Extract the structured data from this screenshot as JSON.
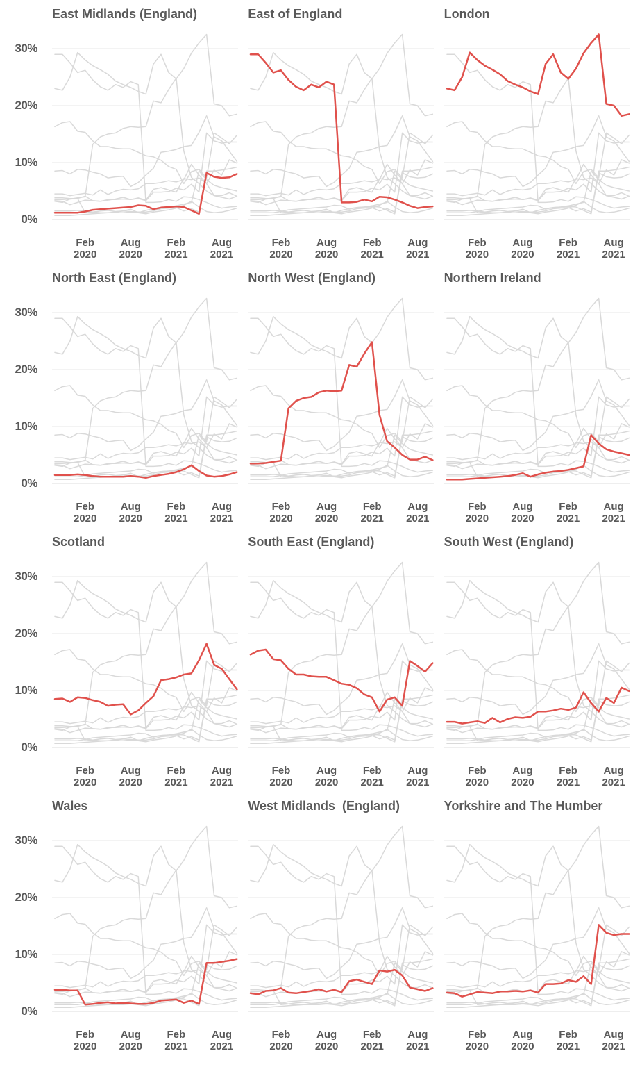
{
  "figure": {
    "background": "#ffffff",
    "text_color": "#595959",
    "gridline_color": "#ececec",
    "zeroline_color": "#e3e3e3",
    "highlight_color": "#e0514c",
    "other_series_color": "#d9d9d9"
  },
  "chart_data": {
    "type": "line",
    "layout": "small-multiples-grid-4x3",
    "values_unit": "%",
    "ylim": [
      0,
      33.2
    ],
    "grid": "horizontal-only",
    "legend": "none",
    "y_ticks": [
      "30%",
      "20%",
      "10%",
      "0%"
    ],
    "y_tick_values": [
      30,
      20,
      10,
      0
    ],
    "x_ticks": [
      {
        "month": "Feb",
        "year": "2020",
        "index": 4
      },
      {
        "month": "Aug",
        "year": "2020",
        "index": 10
      },
      {
        "month": "Feb",
        "year": "2021",
        "index": 16
      },
      {
        "month": "Aug",
        "year": "2021",
        "index": 22
      }
    ],
    "x": [
      "Oct 2019",
      "Nov 2019",
      "Dec 2019",
      "Jan 2020",
      "Feb 2020",
      "Mar 2020",
      "Apr 2020",
      "May 2020",
      "Jun 2020",
      "Jul 2020",
      "Aug 2020",
      "Sep 2020",
      "Oct 2020",
      "Nov 2020",
      "Dec 2020",
      "Jan 2021",
      "Feb 2021",
      "Mar 2021",
      "Apr 2021",
      "May 2021",
      "Jun 2021",
      "Jul 2021",
      "Aug 2021",
      "Sep 2021",
      "Oct 2021"
    ],
    "panels": [
      {
        "title": "East Midlands (England)"
      },
      {
        "title": "East of England"
      },
      {
        "title": "London"
      },
      {
        "title": "North East (England)"
      },
      {
        "title": "North West (England)"
      },
      {
        "title": "Northern Ireland"
      },
      {
        "title": "Scotland"
      },
      {
        "title": "South East (England)"
      },
      {
        "title": "South West (England)"
      },
      {
        "title": "Wales"
      },
      {
        "title": "West Midlands  (England)"
      },
      {
        "title": "Yorkshire and The Humber"
      }
    ],
    "series": [
      {
        "name": "East Midlands (England)",
        "values": [
          1.2,
          1.2,
          1.2,
          1.2,
          1.4,
          1.7,
          1.8,
          1.9,
          2.0,
          2.1,
          2.2,
          2.5,
          2.4,
          1.8,
          2.1,
          2.2,
          2.3,
          2.2,
          1.6,
          1.0,
          8.2,
          7.5,
          7.3,
          7.4,
          8.0
        ]
      },
      {
        "name": "East of England",
        "values": [
          29.0,
          29.0,
          27.5,
          25.8,
          26.2,
          24.5,
          23.3,
          22.7,
          23.7,
          23.2,
          24.2,
          23.7,
          3.0,
          3.0,
          3.1,
          3.5,
          3.2,
          4.0,
          3.9,
          3.5,
          3.0,
          2.4,
          2.0,
          2.2,
          2.3
        ]
      },
      {
        "name": "London",
        "values": [
          23.0,
          22.7,
          25.0,
          29.3,
          28.0,
          27.0,
          26.3,
          25.5,
          24.3,
          23.7,
          23.2,
          22.5,
          22.0,
          27.3,
          29.0,
          25.8,
          24.7,
          26.5,
          29.2,
          31.0,
          32.5,
          20.3,
          20.0,
          18.2,
          18.5
        ]
      },
      {
        "name": "North East (England)",
        "values": [
          1.5,
          1.5,
          1.5,
          1.6,
          1.5,
          1.3,
          1.2,
          1.2,
          1.2,
          1.2,
          1.3,
          1.2,
          1.0,
          1.3,
          1.5,
          1.7,
          2.0,
          2.5,
          3.2,
          2.2,
          1.4,
          1.2,
          1.3,
          1.6,
          2.0
        ]
      },
      {
        "name": "North West (England)",
        "values": [
          3.5,
          3.5,
          3.6,
          3.8,
          4.0,
          13.2,
          14.5,
          15.0,
          15.2,
          16.0,
          16.3,
          16.2,
          16.3,
          20.8,
          20.5,
          22.8,
          24.8,
          12.0,
          7.4,
          6.3,
          5.0,
          4.2,
          4.2,
          4.7,
          4.1
        ]
      },
      {
        "name": "Northern Ireland",
        "values": [
          0.7,
          0.7,
          0.7,
          0.8,
          0.9,
          1.0,
          1.1,
          1.2,
          1.3,
          1.5,
          1.8,
          1.2,
          1.6,
          1.9,
          2.1,
          2.2,
          2.4,
          2.7,
          3.0,
          8.5,
          7.0,
          6.0,
          5.6,
          5.3,
          5.0
        ]
      },
      {
        "name": "Scotland",
        "values": [
          8.5,
          8.6,
          8.0,
          8.8,
          8.7,
          8.3,
          8.0,
          7.3,
          7.5,
          7.6,
          5.8,
          6.5,
          7.8,
          9.0,
          11.8,
          12.0,
          12.3,
          12.8,
          13.0,
          15.3,
          18.2,
          14.5,
          13.8,
          12.0,
          10.2
        ]
      },
      {
        "name": "South East (England)",
        "values": [
          16.3,
          17.0,
          17.2,
          15.5,
          15.3,
          13.8,
          12.8,
          12.8,
          12.5,
          12.4,
          12.4,
          11.8,
          11.2,
          11.0,
          10.4,
          9.3,
          8.8,
          6.3,
          8.4,
          8.8,
          7.3,
          15.2,
          14.3,
          13.3,
          14.8
        ]
      },
      {
        "name": "South West (England)",
        "values": [
          4.5,
          4.5,
          4.2,
          4.4,
          4.6,
          4.3,
          5.2,
          4.4,
          5.0,
          5.3,
          5.2,
          5.4,
          6.3,
          6.3,
          6.5,
          6.8,
          6.6,
          7.0,
          9.7,
          7.8,
          6.3,
          8.7,
          7.8,
          10.5,
          9.9
        ]
      },
      {
        "name": "Wales",
        "values": [
          3.8,
          3.8,
          3.7,
          3.7,
          1.2,
          1.3,
          1.5,
          1.6,
          1.4,
          1.5,
          1.4,
          1.3,
          1.3,
          1.5,
          1.9,
          2.0,
          2.1,
          1.5,
          1.9,
          1.3,
          8.5,
          8.5,
          8.7,
          8.9,
          9.2
        ]
      },
      {
        "name": "West Midlands (England)",
        "values": [
          3.2,
          3.0,
          3.6,
          3.7,
          4.1,
          3.3,
          3.2,
          3.4,
          3.6,
          3.9,
          3.5,
          3.8,
          3.4,
          5.3,
          5.6,
          5.2,
          4.8,
          7.2,
          7.0,
          7.3,
          6.3,
          4.2,
          3.9,
          3.6,
          4.1
        ]
      },
      {
        "name": "Yorkshire and The Humber",
        "values": [
          3.3,
          3.2,
          2.6,
          3.0,
          3.4,
          3.3,
          3.2,
          3.5,
          3.5,
          3.6,
          3.5,
          3.7,
          3.3,
          4.8,
          4.8,
          4.9,
          5.5,
          5.2,
          6.2,
          4.8,
          15.2,
          13.8,
          13.4,
          13.6,
          13.6
        ]
      }
    ]
  }
}
